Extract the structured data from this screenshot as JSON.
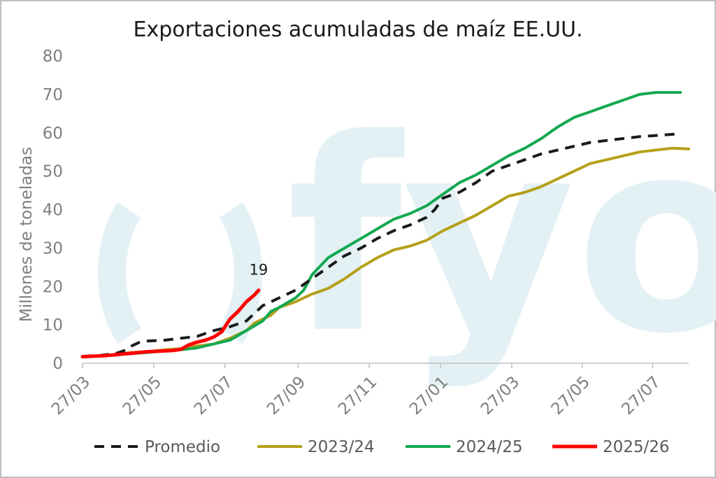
{
  "chart_data": {
    "type": "line",
    "title": "Exportaciones acumuladas de maíz EE.UU.",
    "ylabel": "Millones de toneladas",
    "xlabel": "",
    "ylim": [
      0,
      80
    ],
    "yticks": [
      0,
      10,
      20,
      30,
      40,
      50,
      60,
      70,
      80
    ],
    "xlim_weeks": [
      0,
      74
    ],
    "xticks": [
      {
        "week": 0,
        "label": "27/03"
      },
      {
        "week": 8.7,
        "label": "27/05"
      },
      {
        "week": 17.4,
        "label": "27/07"
      },
      {
        "week": 26.3,
        "label": "27/09"
      },
      {
        "week": 35.0,
        "label": "27/11"
      },
      {
        "week": 43.7,
        "label": "27/01"
      },
      {
        "week": 52.4,
        "label": "27/03"
      },
      {
        "week": 61.0,
        "label": "27/05"
      },
      {
        "week": 69.6,
        "label": "27/07"
      }
    ],
    "legend_position": "bottom",
    "watermark": "fyo",
    "annotation": {
      "text": "19",
      "series": "2025/26"
    },
    "series": [
      {
        "name": "Promedio",
        "color": "#1a1a1a",
        "dashed": true,
        "points": [
          [
            0,
            1.8
          ],
          [
            2,
            2.0
          ],
          [
            4,
            2.5
          ],
          [
            5,
            3.2
          ],
          [
            6,
            4.5
          ],
          [
            7,
            5.5
          ],
          [
            8,
            5.8
          ],
          [
            10,
            6.0
          ],
          [
            12,
            6.5
          ],
          [
            14,
            7.0
          ],
          [
            16,
            8.5
          ],
          [
            18,
            9.5
          ],
          [
            20,
            11
          ],
          [
            22,
            15
          ],
          [
            24,
            17
          ],
          [
            26,
            19
          ],
          [
            28,
            22
          ],
          [
            30,
            25
          ],
          [
            32,
            28
          ],
          [
            34,
            30
          ],
          [
            36,
            32.5
          ],
          [
            38,
            34.5
          ],
          [
            40,
            36
          ],
          [
            42,
            38
          ],
          [
            43,
            40
          ],
          [
            44,
            43
          ],
          [
            46,
            44.5
          ],
          [
            48,
            47
          ],
          [
            50,
            50
          ],
          [
            52,
            51.5
          ],
          [
            54,
            53
          ],
          [
            56,
            54.5
          ],
          [
            58,
            55.5
          ],
          [
            60,
            56.5
          ],
          [
            62,
            57.5
          ],
          [
            64,
            58
          ],
          [
            66,
            58.5
          ],
          [
            68,
            59
          ],
          [
            70,
            59.3
          ],
          [
            72,
            59.6
          ],
          [
            73,
            59.6
          ]
        ]
      },
      {
        "name": "2023/24",
        "color": "#b5a01a",
        "dashed": false,
        "points": [
          [
            0,
            1.7
          ],
          [
            3,
            2.0
          ],
          [
            6,
            2.8
          ],
          [
            8,
            3.0
          ],
          [
            10,
            3.5
          ],
          [
            12,
            3.8
          ],
          [
            14,
            4.5
          ],
          [
            16,
            5.0
          ],
          [
            18,
            6.5
          ],
          [
            20,
            8.5
          ],
          [
            21,
            10.5
          ],
          [
            22,
            11.5
          ],
          [
            23,
            12.5
          ],
          [
            24,
            14.5
          ],
          [
            26,
            16
          ],
          [
            28,
            18
          ],
          [
            30,
            19.5
          ],
          [
            32,
            22
          ],
          [
            34,
            25
          ],
          [
            36,
            27.5
          ],
          [
            38,
            29.5
          ],
          [
            40,
            30.5
          ],
          [
            42,
            32
          ],
          [
            44,
            34.5
          ],
          [
            46,
            36.5
          ],
          [
            48,
            38.5
          ],
          [
            50,
            41
          ],
          [
            52,
            43.5
          ],
          [
            54,
            44.5
          ],
          [
            56,
            46
          ],
          [
            58,
            48
          ],
          [
            60,
            50
          ],
          [
            62,
            52
          ],
          [
            64,
            53
          ],
          [
            66,
            54
          ],
          [
            68,
            55
          ],
          [
            70,
            55.5
          ],
          [
            72,
            56
          ],
          [
            74,
            55.8
          ]
        ]
      },
      {
        "name": "2024/25",
        "color": "#13a851",
        "dashed": false,
        "points": [
          [
            0,
            1.7
          ],
          [
            3,
            2.0
          ],
          [
            6,
            2.5
          ],
          [
            8,
            2.8
          ],
          [
            10,
            3.2
          ],
          [
            12,
            3.5
          ],
          [
            14,
            4.0
          ],
          [
            16,
            5.0
          ],
          [
            18,
            6.0
          ],
          [
            20,
            8.5
          ],
          [
            22,
            11
          ],
          [
            23,
            13.5
          ],
          [
            24,
            14.5
          ],
          [
            26,
            17
          ],
          [
            27,
            19
          ],
          [
            28,
            23
          ],
          [
            30,
            27.5
          ],
          [
            32,
            30
          ],
          [
            34,
            32.5
          ],
          [
            36,
            35
          ],
          [
            38,
            37.5
          ],
          [
            40,
            39
          ],
          [
            42,
            41
          ],
          [
            44,
            44
          ],
          [
            46,
            47
          ],
          [
            48,
            49
          ],
          [
            50,
            51.5
          ],
          [
            52,
            54
          ],
          [
            54,
            56
          ],
          [
            56,
            58.5
          ],
          [
            58,
            61.5
          ],
          [
            60,
            64
          ],
          [
            62,
            65.5
          ],
          [
            64,
            67
          ],
          [
            66,
            68.5
          ],
          [
            68,
            70
          ],
          [
            70,
            70.5
          ],
          [
            72,
            70.5
          ],
          [
            73,
            70.5
          ]
        ]
      },
      {
        "name": "2025/26",
        "color": "#ff0000",
        "dashed": false,
        "points": [
          [
            0,
            1.7
          ],
          [
            1,
            1.8
          ],
          [
            2,
            1.9
          ],
          [
            3,
            2.0
          ],
          [
            4,
            2.2
          ],
          [
            5,
            2.4
          ],
          [
            6,
            2.6
          ],
          [
            7,
            2.8
          ],
          [
            8,
            3.0
          ],
          [
            9,
            3.1
          ],
          [
            10,
            3.2
          ],
          [
            11,
            3.3
          ],
          [
            12,
            3.6
          ],
          [
            13,
            4.8
          ],
          [
            14,
            5.5
          ],
          [
            15,
            6.0
          ],
          [
            16,
            6.8
          ],
          [
            17,
            8.2
          ],
          [
            18,
            11.5
          ],
          [
            19,
            13.5
          ],
          [
            20,
            16
          ],
          [
            21,
            17.8
          ],
          [
            21.5,
            19
          ]
        ]
      }
    ]
  }
}
